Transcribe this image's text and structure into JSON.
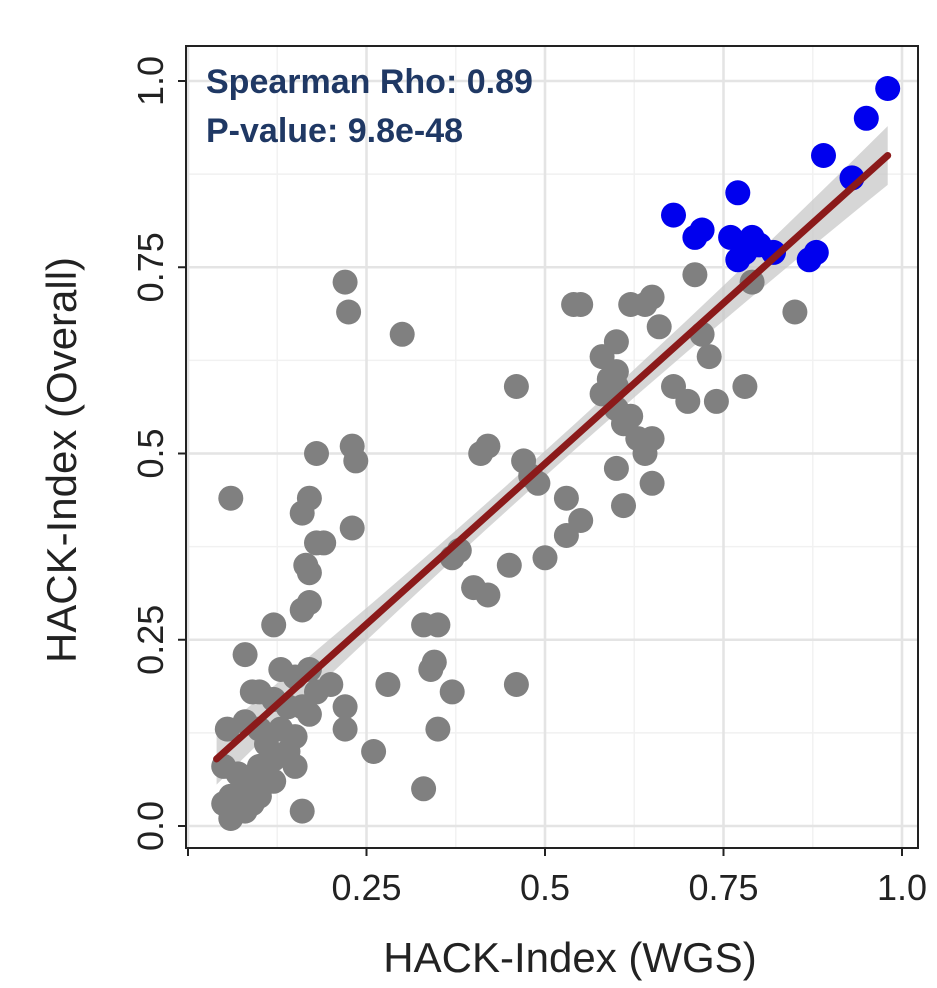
{
  "chart_data": {
    "type": "scatter",
    "title": "",
    "xlabel": "HACK-Index (WGS)",
    "ylabel": "HACK-Index (Overall)",
    "xlim": [
      0.0,
      1.0
    ],
    "ylim": [
      -0.03,
      1.03
    ],
    "x_ticks": [
      0.25,
      0.5,
      0.75,
      1.0
    ],
    "x_tick_labels": [
      "0.25",
      "0.5",
      "0.75",
      "1.0"
    ],
    "y_ticks": [
      0.0,
      0.25,
      0.5,
      0.75,
      1.0
    ],
    "y_tick_labels": [
      "0.0",
      "0.25",
      "0.5",
      "0.75",
      "1.0"
    ],
    "grid": true,
    "legend": "none",
    "annotations": [
      "Spearman Rho: 0.89",
      "P-value: 9.8e-48"
    ],
    "colors": {
      "gray_points": "#808080",
      "blue_points": "#0000ee",
      "trend_line": "#8b1a1a",
      "confidence_band": "#c8c8c8",
      "annotation_text": "#1f3864"
    },
    "trend_line": {
      "x": [
        0.04,
        0.98
      ],
      "y": [
        0.09,
        0.9
      ]
    },
    "series": [
      {
        "color_key": "gray_points",
        "points": [
          [
            0.06,
            0.44
          ],
          [
            0.22,
            0.73
          ],
          [
            0.225,
            0.69
          ],
          [
            0.3,
            0.66
          ],
          [
            0.18,
            0.5
          ],
          [
            0.23,
            0.51
          ],
          [
            0.235,
            0.49
          ],
          [
            0.17,
            0.44
          ],
          [
            0.16,
            0.42
          ],
          [
            0.23,
            0.4
          ],
          [
            0.19,
            0.38
          ],
          [
            0.18,
            0.38
          ],
          [
            0.165,
            0.35
          ],
          [
            0.17,
            0.34
          ],
          [
            0.17,
            0.3
          ],
          [
            0.16,
            0.29
          ],
          [
            0.12,
            0.27
          ],
          [
            0.08,
            0.23
          ],
          [
            0.13,
            0.21
          ],
          [
            0.15,
            0.2
          ],
          [
            0.17,
            0.21
          ],
          [
            0.2,
            0.19
          ],
          [
            0.18,
            0.18
          ],
          [
            0.09,
            0.18
          ],
          [
            0.1,
            0.18
          ],
          [
            0.12,
            0.17
          ],
          [
            0.14,
            0.16
          ],
          [
            0.16,
            0.16
          ],
          [
            0.17,
            0.15
          ],
          [
            0.22,
            0.16
          ],
          [
            0.055,
            0.13
          ],
          [
            0.08,
            0.14
          ],
          [
            0.1,
            0.13
          ],
          [
            0.13,
            0.13
          ],
          [
            0.15,
            0.12
          ],
          [
            0.11,
            0.11
          ],
          [
            0.22,
            0.13
          ],
          [
            0.14,
            0.1
          ],
          [
            0.12,
            0.09
          ],
          [
            0.15,
            0.08
          ],
          [
            0.1,
            0.08
          ],
          [
            0.05,
            0.08
          ],
          [
            0.07,
            0.07
          ],
          [
            0.09,
            0.06
          ],
          [
            0.12,
            0.06
          ],
          [
            0.08,
            0.05
          ],
          [
            0.06,
            0.04
          ],
          [
            0.09,
            0.03
          ],
          [
            0.1,
            0.04
          ],
          [
            0.05,
            0.03
          ],
          [
            0.06,
            0.02
          ],
          [
            0.07,
            0.03
          ],
          [
            0.08,
            0.02
          ],
          [
            0.06,
            0.01
          ],
          [
            0.16,
            0.02
          ],
          [
            0.26,
            0.1
          ],
          [
            0.28,
            0.19
          ],
          [
            0.33,
            0.27
          ],
          [
            0.34,
            0.21
          ],
          [
            0.345,
            0.22
          ],
          [
            0.35,
            0.27
          ],
          [
            0.35,
            0.13
          ],
          [
            0.33,
            0.05
          ],
          [
            0.37,
            0.18
          ],
          [
            0.37,
            0.36
          ],
          [
            0.38,
            0.37
          ],
          [
            0.4,
            0.32
          ],
          [
            0.42,
            0.31
          ],
          [
            0.41,
            0.5
          ],
          [
            0.42,
            0.51
          ],
          [
            0.45,
            0.35
          ],
          [
            0.46,
            0.19
          ],
          [
            0.47,
            0.49
          ],
          [
            0.48,
            0.47
          ],
          [
            0.49,
            0.46
          ],
          [
            0.5,
            0.36
          ],
          [
            0.46,
            0.59
          ],
          [
            0.53,
            0.44
          ],
          [
            0.53,
            0.39
          ],
          [
            0.55,
            0.41
          ],
          [
            0.54,
            0.7
          ],
          [
            0.55,
            0.7
          ],
          [
            0.58,
            0.63
          ],
          [
            0.58,
            0.58
          ],
          [
            0.6,
            0.61
          ],
          [
            0.59,
            0.6
          ],
          [
            0.6,
            0.56
          ],
          [
            0.61,
            0.54
          ],
          [
            0.6,
            0.65
          ],
          [
            0.62,
            0.7
          ],
          [
            0.64,
            0.7
          ],
          [
            0.65,
            0.71
          ],
          [
            0.66,
            0.67
          ],
          [
            0.62,
            0.55
          ],
          [
            0.63,
            0.52
          ],
          [
            0.64,
            0.5
          ],
          [
            0.6,
            0.48
          ],
          [
            0.61,
            0.43
          ],
          [
            0.65,
            0.46
          ],
          [
            0.65,
            0.52
          ],
          [
            0.68,
            0.59
          ],
          [
            0.7,
            0.57
          ],
          [
            0.71,
            0.74
          ],
          [
            0.72,
            0.66
          ],
          [
            0.73,
            0.63
          ],
          [
            0.74,
            0.57
          ],
          [
            0.78,
            0.59
          ],
          [
            0.79,
            0.73
          ],
          [
            0.85,
            0.69
          ],
          [
            0.6,
            0.59
          ]
        ]
      },
      {
        "color_key": "blue_points",
        "points": [
          [
            0.98,
            0.99
          ],
          [
            0.95,
            0.95
          ],
          [
            0.89,
            0.9
          ],
          [
            0.93,
            0.87
          ],
          [
            0.77,
            0.85
          ],
          [
            0.68,
            0.82
          ],
          [
            0.71,
            0.79
          ],
          [
            0.72,
            0.8
          ],
          [
            0.76,
            0.79
          ],
          [
            0.79,
            0.79
          ],
          [
            0.78,
            0.77
          ],
          [
            0.8,
            0.78
          ],
          [
            0.82,
            0.77
          ],
          [
            0.88,
            0.77
          ],
          [
            0.87,
            0.76
          ],
          [
            0.77,
            0.76
          ]
        ]
      }
    ]
  }
}
